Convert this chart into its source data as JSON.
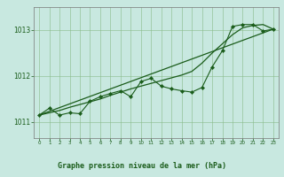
{
  "title": "Graphe pression niveau de la mer (hPa)",
  "bg_color": "#c8e8e0",
  "plot_bg_color": "#c8e8e0",
  "grid_color": "#88bb88",
  "line_color": "#1a5c1a",
  "marker_color": "#1a5c1a",
  "x_ticks": [
    0,
    1,
    2,
    3,
    4,
    5,
    6,
    7,
    8,
    9,
    10,
    11,
    12,
    13,
    14,
    15,
    16,
    17,
    18,
    19,
    20,
    21,
    22,
    23
  ],
  "xlim": [
    -0.5,
    23.5
  ],
  "ylim": [
    1010.65,
    1013.5
  ],
  "yticks": [
    1011,
    1012,
    1013
  ],
  "main_line_x": [
    0,
    1,
    2,
    3,
    4,
    5,
    6,
    7,
    8,
    9,
    10,
    11,
    12,
    13,
    14,
    15,
    16,
    17,
    18,
    19,
    20,
    21,
    22,
    23
  ],
  "main_line_y": [
    1011.15,
    1011.3,
    1011.15,
    1011.2,
    1011.18,
    1011.45,
    1011.55,
    1011.62,
    1011.68,
    1011.55,
    1011.88,
    1011.95,
    1011.78,
    1011.72,
    1011.68,
    1011.65,
    1011.75,
    1012.2,
    1012.55,
    1013.08,
    1013.12,
    1013.12,
    1012.98,
    1013.02
  ],
  "smooth_line1_x": [
    0,
    1,
    2,
    3,
    4,
    5,
    6,
    7,
    8,
    9,
    10,
    11,
    12,
    13,
    14,
    15,
    16,
    17,
    18,
    19,
    20,
    21,
    22,
    23
  ],
  "smooth_line1_y": [
    1011.15,
    1011.2,
    1011.25,
    1011.32,
    1011.38,
    1011.44,
    1011.5,
    1011.58,
    1011.65,
    1011.72,
    1011.78,
    1011.84,
    1011.9,
    1011.96,
    1012.02,
    1012.1,
    1012.28,
    1012.5,
    1012.7,
    1012.9,
    1013.05,
    1013.1,
    1013.12,
    1013.02
  ],
  "smooth_line2_x": [
    0,
    23
  ],
  "smooth_line2_y": [
    1011.15,
    1013.02
  ]
}
